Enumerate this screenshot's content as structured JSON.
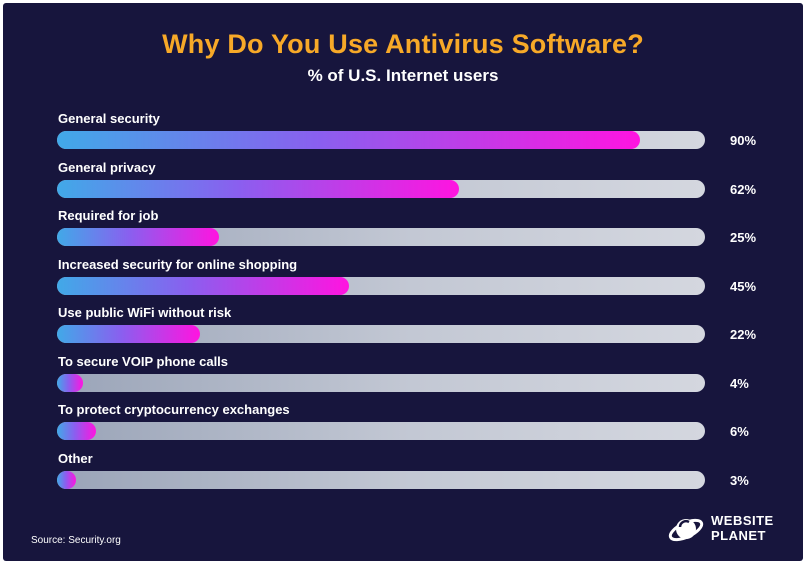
{
  "chart_data": {
    "type": "bar",
    "orientation": "horizontal",
    "title": "Why Do You Use Antivirus Software?",
    "subtitle": "% of U.S. Internet users",
    "categories": [
      "General security",
      "General privacy",
      "Required for job",
      "Increased security for online shopping",
      "Use public WiFi without risk",
      "To secure VOIP phone calls",
      "To protect cryptocurrency exchanges",
      "Other"
    ],
    "values": [
      90,
      62,
      25,
      45,
      22,
      4,
      6,
      3
    ],
    "value_labels": [
      "90%",
      "62%",
      "25%",
      "45%",
      "22%",
      "4%",
      "6%",
      "3%"
    ],
    "xlim": [
      0,
      100
    ],
    "grid": false,
    "legend": "none"
  },
  "source": "Source: Security.org",
  "brand": {
    "line1": "WEBSITE",
    "line2": "PLANET"
  },
  "colors": {
    "background": "#17153d",
    "title": "#f7a928",
    "bar_start": "#41a9e8",
    "bar_end": "#ff14e0",
    "track": "#c3c8d4"
  }
}
